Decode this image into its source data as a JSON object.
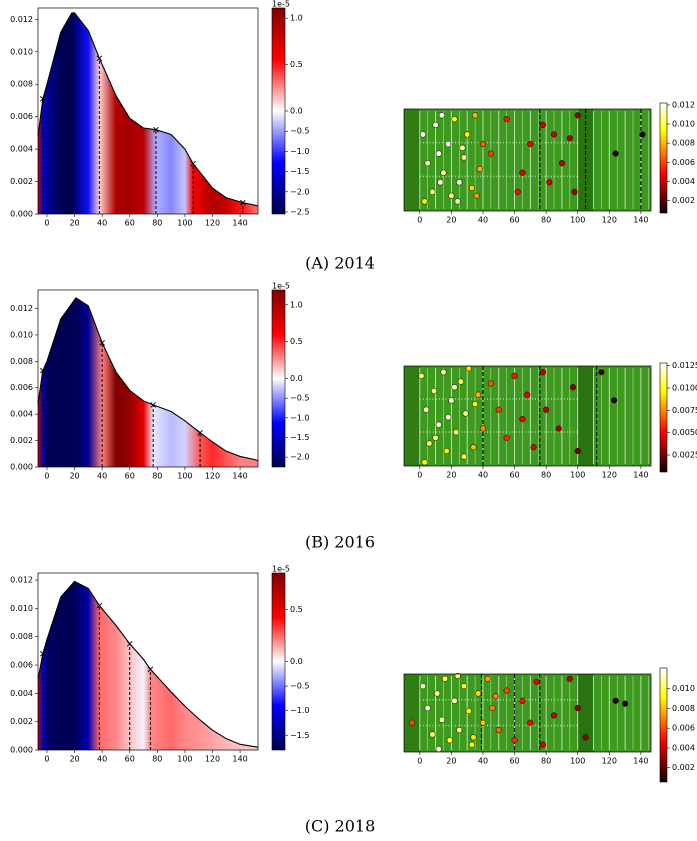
{
  "captions": [
    "(A) 2014",
    "(B) 2016",
    "(C) 2018"
  ],
  "chart_data": [
    {
      "type": "density",
      "x": [
        -6.5,
        -3,
        0,
        10,
        18,
        20,
        30,
        38,
        50,
        60,
        70,
        79,
        90,
        100,
        106,
        120,
        130,
        142,
        153
      ],
      "values": [
        0.0048,
        0.0071,
        0.008,
        0.0112,
        0.0124,
        0.0124,
        0.0113,
        0.0096,
        0.0073,
        0.0059,
        0.0053,
        0.0052,
        0.0049,
        0.004,
        0.0031,
        0.0016,
        0.001,
        0.0007,
        0.0005
      ],
      "heat": [
        0.8,
        -1.5,
        -2.0,
        -2.5,
        -2.5,
        -2.3,
        -1.2,
        0.1,
        0.9,
        0.95,
        0.85,
        -0.4,
        -0.6,
        -0.3,
        0.6,
        0.9,
        0.8,
        0.5,
        0.3
      ],
      "markers_x": [
        -3,
        38,
        79,
        106,
        142
      ],
      "markers_y": [
        0.0071,
        0.0096,
        0.0052,
        0.0031,
        0.0007
      ],
      "xlim": [
        -6.5,
        153
      ],
      "xticks": [
        0,
        20,
        40,
        60,
        80,
        100,
        120,
        140
      ],
      "ylim": [
        0,
        0.0127
      ],
      "yticks": [
        {
          "value": 0,
          "label": "0.000"
        },
        0.002,
        0.004,
        0.006,
        0.008,
        {
          "value": 0.01,
          "label": "0.010"
        },
        0.012
      ],
      "colorbar": {
        "colormap": "seismic",
        "norm": "two-slope",
        "clim": [
          -2.55,
          1.11
        ],
        "offset_label": "1e-5",
        "ticks": [
          {
            "value": 1,
            "label": "1.0"
          },
          0.5,
          {
            "value": 0,
            "label": "0.0"
          },
          {
            "value": -0.5,
            "label": "−0.5"
          },
          {
            "value": -1,
            "label": "−1.0"
          },
          {
            "value": -1.5,
            "label": "−1.5"
          },
          {
            "value": -2,
            "label": "−2.0"
          },
          {
            "value": -2.5,
            "label": "−2.5"
          }
        ]
      }
    },
    {
      "type": "field",
      "x": [
        2,
        5,
        8,
        10,
        12,
        15,
        18,
        20,
        22,
        25,
        28,
        30,
        33,
        35,
        38,
        40,
        3,
        14,
        24,
        36,
        45,
        55,
        62,
        65,
        70,
        78,
        82,
        85,
        90,
        95,
        98,
        100,
        124,
        141,
        13,
        27
      ],
      "y": [
        40,
        25,
        10,
        45,
        30,
        20,
        35,
        8,
        48,
        15,
        28,
        40,
        12,
        50,
        22,
        35,
        5,
        50,
        5,
        8,
        30,
        48,
        10,
        20,
        35,
        45,
        15,
        40,
        25,
        38,
        10,
        50,
        30,
        40,
        15,
        33
      ],
      "values": [
        0.012,
        0.0115,
        0.011,
        0.0118,
        0.012,
        0.0112,
        0.0122,
        0.0105,
        0.0095,
        0.0118,
        0.0108,
        0.009,
        0.0085,
        0.008,
        0.0078,
        0.0065,
        0.009,
        0.0121,
        0.0115,
        0.0075,
        0.006,
        0.0052,
        0.005,
        0.0045,
        0.0048,
        0.0042,
        0.004,
        0.0041,
        0.0038,
        0.0035,
        0.0032,
        0.003,
        0.0012,
        0.0009,
        0.0119,
        0.011
      ],
      "dashed_x": [
        76,
        105,
        140
      ],
      "xlim": [
        -10,
        146.4
      ],
      "xticks": [
        0,
        20,
        40,
        60,
        80,
        100,
        120,
        140
      ],
      "ylim": [
        0,
        53.3
      ],
      "colorbar": {
        "colormap": "hot",
        "clim": [
          0.0007,
          0.0122
        ],
        "ticks": [
          0.012,
          {
            "value": 0.01,
            "label": "0.010"
          },
          0.008,
          0.006,
          0.004,
          0.002
        ]
      }
    },
    {
      "type": "density",
      "x": [
        -6.5,
        -3,
        0,
        10,
        21,
        30,
        40,
        50,
        60,
        70,
        77,
        90,
        100,
        111,
        120,
        130,
        140,
        153
      ],
      "values": [
        0.0048,
        0.0073,
        0.008,
        0.0112,
        0.0128,
        0.0122,
        0.0094,
        0.0072,
        0.0058,
        0.005,
        0.0047,
        0.0042,
        0.0035,
        0.0026,
        0.0019,
        0.0012,
        0.0008,
        0.0005
      ],
      "heat": [
        0.9,
        -1.5,
        -2.2,
        -2.2,
        -2.2,
        -1.8,
        0.3,
        1.2,
        1.1,
        0.7,
        -0.1,
        -0.3,
        -0.2,
        0.4,
        0.5,
        0.4,
        0.3,
        0.3
      ],
      "markers_x": [
        -3,
        40,
        77,
        111
      ],
      "markers_y": [
        0.0073,
        0.0094,
        0.0047,
        0.0026
      ],
      "xlim": [
        -6.5,
        153
      ],
      "xticks": [
        0,
        20,
        40,
        60,
        80,
        100,
        120,
        140
      ],
      "ylim": [
        0,
        0.0134
      ],
      "yticks": [
        {
          "value": 0,
          "label": "0.000"
        },
        0.002,
        0.004,
        0.006,
        0.008,
        {
          "value": 0.01,
          "label": "0.010"
        },
        0.012
      ],
      "colorbar": {
        "colormap": "seismic",
        "norm": "two-slope",
        "clim": [
          -2.25,
          1.2
        ],
        "offset_label": "1e-5",
        "ticks": [
          {
            "value": 1,
            "label": "1.0"
          },
          0.5,
          {
            "value": 0,
            "label": "0.0"
          },
          {
            "value": -0.5,
            "label": "−0.5"
          },
          {
            "value": -1,
            "label": "−1.0"
          },
          {
            "value": -1.5,
            "label": "−1.5"
          },
          {
            "value": -2,
            "label": "−2.0"
          }
        ]
      }
    },
    {
      "type": "field",
      "x": [
        1,
        4,
        6,
        9,
        12,
        15,
        17,
        20,
        23,
        26,
        29,
        31,
        34,
        37,
        40,
        3,
        18,
        28,
        45,
        50,
        55,
        60,
        65,
        68,
        72,
        78,
        80,
        88,
        97,
        100,
        115,
        123,
        10,
        22,
        35
      ],
      "y": [
        48,
        30,
        12,
        40,
        22,
        50,
        8,
        35,
        18,
        45,
        28,
        52,
        10,
        38,
        20,
        2,
        26,
        5,
        44,
        30,
        15,
        48,
        25,
        38,
        10,
        50,
        30,
        20,
        42,
        8,
        50,
        35,
        15,
        42,
        33
      ],
      "values": [
        0.011,
        0.012,
        0.0105,
        0.0115,
        0.0122,
        0.0118,
        0.0095,
        0.0125,
        0.011,
        0.0108,
        0.0112,
        0.009,
        0.0085,
        0.0082,
        0.0075,
        0.01,
        0.0124,
        0.0105,
        0.0065,
        0.006,
        0.0058,
        0.0055,
        0.005,
        0.0048,
        0.0045,
        0.004,
        0.0038,
        0.0035,
        0.003,
        0.0028,
        0.0015,
        0.001,
        0.0115,
        0.012,
        0.0095
      ],
      "dashed_x": [
        40,
        76,
        112
      ],
      "xlim": [
        -10,
        146.4
      ],
      "xticks": [
        0,
        20,
        40,
        60,
        80,
        100,
        120,
        140
      ],
      "ylim": [
        0,
        53.3
      ],
      "colorbar": {
        "colormap": "hot",
        "clim": [
          0.0006,
          0.0128
        ],
        "ticks": [
          0.0125,
          {
            "value": 0.01,
            "label": "0.0100"
          },
          0.0075,
          {
            "value": 0.005,
            "label": "0.0050"
          },
          0.0025
        ]
      }
    },
    {
      "type": "density",
      "x": [
        -6.5,
        -3,
        0,
        10,
        20,
        30,
        38,
        50,
        60,
        70,
        75,
        90,
        100,
        110,
        120,
        130,
        140,
        153
      ],
      "values": [
        0.005,
        0.0068,
        0.0078,
        0.0108,
        0.0119,
        0.0114,
        0.0102,
        0.0088,
        0.0075,
        0.0064,
        0.0057,
        0.0041,
        0.0031,
        0.0022,
        0.0014,
        0.0008,
        0.0004,
        0.0002
      ],
      "heat": [
        0.7,
        -1.0,
        -1.7,
        -1.75,
        -1.75,
        -1.3,
        0.25,
        0.2,
        0.1,
        -0.05,
        0.2,
        0.25,
        0.2,
        0.18,
        0.15,
        0.12,
        0.1,
        0.1
      ],
      "markers_x": [
        -3,
        38,
        60,
        75
      ],
      "markers_y": [
        0.0068,
        0.0102,
        0.0075,
        0.0057
      ],
      "xlim": [
        -6.5,
        153
      ],
      "xticks": [
        0,
        20,
        40,
        60,
        80,
        100,
        120,
        140
      ],
      "ylim": [
        0,
        0.0125
      ],
      "yticks": [
        {
          "value": 0,
          "label": "0.000"
        },
        0.002,
        0.004,
        0.006,
        0.008,
        {
          "value": 0.01,
          "label": "0.010"
        },
        0.012
      ],
      "colorbar": {
        "colormap": "seismic",
        "norm": "two-slope",
        "clim": [
          -1.8,
          0.85
        ],
        "offset_label": "1e-5",
        "ticks": [
          0.5,
          {
            "value": 0,
            "label": "0.0"
          },
          {
            "value": -0.5,
            "label": "−0.5"
          },
          {
            "value": -1,
            "label": "−1.0"
          },
          {
            "value": -1.5,
            "label": "−1.5"
          }
        ]
      }
    },
    {
      "type": "field",
      "x": [
        -5,
        2,
        5,
        8,
        11,
        14,
        16,
        19,
        22,
        25,
        28,
        31,
        34,
        37,
        40,
        43,
        46,
        50,
        55,
        60,
        65,
        70,
        74,
        78,
        85,
        95,
        100,
        105,
        124,
        130,
        12,
        24,
        33,
        48
      ],
      "y": [
        20,
        45,
        30,
        12,
        40,
        22,
        50,
        8,
        35,
        15,
        45,
        28,
        10,
        40,
        20,
        50,
        30,
        15,
        42,
        8,
        35,
        20,
        48,
        5,
        25,
        50,
        30,
        10,
        35,
        33,
        2,
        52,
        5,
        38
      ],
      "values": [
        0.006,
        0.0115,
        0.0118,
        0.0105,
        0.011,
        0.0112,
        0.01,
        0.0095,
        0.0112,
        0.0105,
        0.0098,
        0.009,
        0.0088,
        0.0085,
        0.008,
        0.0075,
        0.007,
        0.0065,
        0.006,
        0.0055,
        0.005,
        0.0048,
        0.0045,
        0.0042,
        0.0038,
        0.0035,
        0.003,
        0.0028,
        0.0012,
        0.0008,
        0.0118,
        0.0102,
        0.0092,
        0.0068
      ],
      "dashed_x": [
        39,
        60,
        76
      ],
      "xlim": [
        -10,
        146.4
      ],
      "xticks": [
        0,
        20,
        40,
        60,
        80,
        100,
        120,
        140
      ],
      "ylim": [
        0,
        53.3
      ],
      "colorbar": {
        "colormap": "hot",
        "clim": [
          0.00055,
          0.0121
        ],
        "ticks": [
          {
            "value": 0.01,
            "label": "0.010"
          },
          0.008,
          0.006,
          0.004,
          0.002
        ]
      }
    }
  ]
}
